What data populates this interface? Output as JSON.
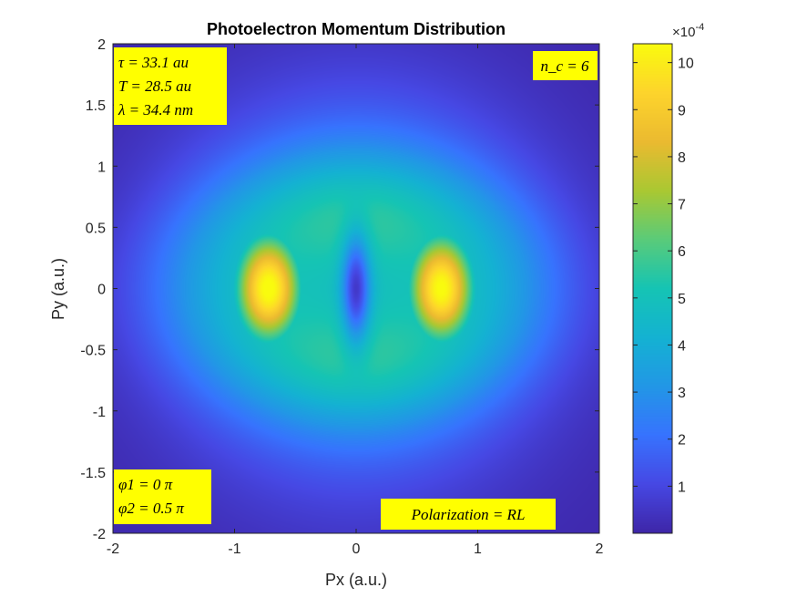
{
  "chart_data": {
    "type": "heatmap",
    "title": "Photoelectron Momentum Distribution",
    "xlabel": "Px (a.u.)",
    "ylabel": "Py (a.u.)",
    "xlim": [
      -2,
      2
    ],
    "ylim": [
      -2,
      2
    ],
    "x_ticks": [
      "-2",
      "-1",
      "0",
      "1",
      "2"
    ],
    "y_ticks": [
      "2",
      "1.5",
      "1",
      "0.5",
      "0",
      "-0.5",
      "-1",
      "-1.5",
      "-2"
    ],
    "colormap": "parula",
    "colorbar": {
      "exponent_label": "×10",
      "exponent_power": "-4",
      "range": [
        0,
        10.4
      ],
      "ticks": [
        "10",
        "9",
        "8",
        "7",
        "6",
        "5",
        "4",
        "3",
        "2",
        "1"
      ]
    },
    "peaks": [
      {
        "px": -0.72,
        "py": 0.0,
        "value": 10.4
      },
      {
        "px": 0.7,
        "py": 0.0,
        "value": 10.3
      }
    ],
    "minimum": {
      "px": 0.0,
      "py": 0.0
    },
    "annotations": {
      "params": [
        "τ = 33.1 au",
        "T = 28.5 au",
        "λ = 34.4 nm"
      ],
      "cycles": "n_c = 6",
      "phases": [
        "φ1 = 0 π",
        "φ2 = 0.5 π"
      ],
      "polarization": "Polarization = RL"
    },
    "colors": {
      "annotation_bg": "#FFFF00",
      "dark": "#3E26A8",
      "bright": "#F9FB0E"
    }
  }
}
